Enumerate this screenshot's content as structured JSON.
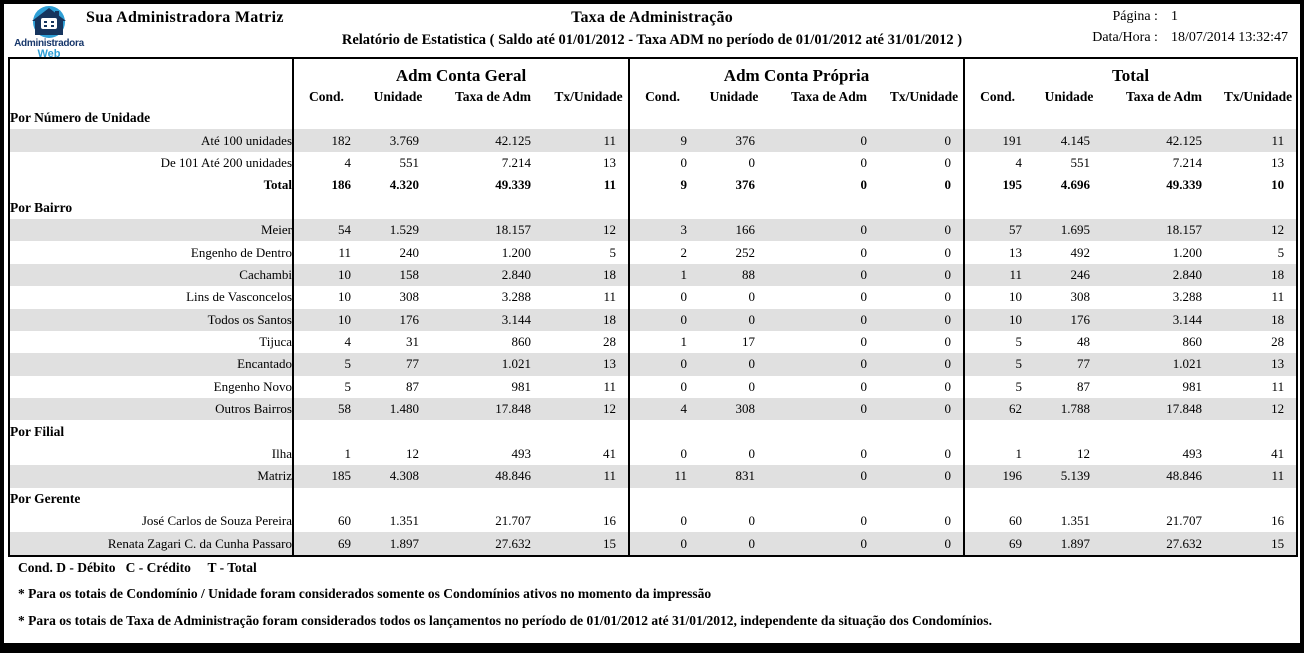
{
  "header": {
    "company": "Sua Administradora Matriz",
    "report_title": "Taxa de Administração",
    "report_subtitle": "Relatório de Estatistica ( Saldo até 01/01/2012 - Taxa ADM no período de 01/01/2012 até 31/01/2012 )",
    "page_label": "Página :",
    "page_value": "1",
    "datetime_label": "Data/Hora :",
    "datetime_value": "18/07/2014 13:32:47",
    "logo_line1": "Administradora",
    "logo_line2": "Web",
    "logo_icon": "house-icon",
    "logo_colors": {
      "circle": "#2e9fd6",
      "house": "#16355e",
      "text_dark": "#17376b",
      "text_light": "#2e9fd6"
    }
  },
  "table": {
    "groups": [
      "Adm Conta Geral",
      "Adm Conta Própria",
      "Total"
    ],
    "columns": [
      "Cond.",
      "Unidade",
      "Taxa de Adm",
      "Tx/Unidade"
    ],
    "shaded_row_color": "#e0e0e0",
    "sections": [
      {
        "title": "Por Número de Unidade",
        "rows": [
          {
            "label": "Até 100 unidades",
            "shaded": true,
            "bold": false,
            "geral": [
              "182",
              "3.769",
              "42.125",
              "11"
            ],
            "propria": [
              "9",
              "376",
              "0",
              "0"
            ],
            "total": [
              "191",
              "4.145",
              "42.125",
              "11"
            ]
          },
          {
            "label": "De 101 Até 200 unidades",
            "shaded": false,
            "bold": false,
            "geral": [
              "4",
              "551",
              "7.214",
              "13"
            ],
            "propria": [
              "0",
              "0",
              "0",
              "0"
            ],
            "total": [
              "4",
              "551",
              "7.214",
              "13"
            ]
          },
          {
            "label": "Total",
            "shaded": false,
            "bold": true,
            "geral": [
              "186",
              "4.320",
              "49.339",
              "11"
            ],
            "propria": [
              "9",
              "376",
              "0",
              "0"
            ],
            "total": [
              "195",
              "4.696",
              "49.339",
              "10"
            ]
          }
        ]
      },
      {
        "title": "Por Bairro",
        "rows": [
          {
            "label": "Meier",
            "shaded": true,
            "bold": false,
            "geral": [
              "54",
              "1.529",
              "18.157",
              "12"
            ],
            "propria": [
              "3",
              "166",
              "0",
              "0"
            ],
            "total": [
              "57",
              "1.695",
              "18.157",
              "12"
            ]
          },
          {
            "label": "Engenho de Dentro",
            "shaded": false,
            "bold": false,
            "geral": [
              "11",
              "240",
              "1.200",
              "5"
            ],
            "propria": [
              "2",
              "252",
              "0",
              "0"
            ],
            "total": [
              "13",
              "492",
              "1.200",
              "5"
            ]
          },
          {
            "label": "Cachambi",
            "shaded": true,
            "bold": false,
            "geral": [
              "10",
              "158",
              "2.840",
              "18"
            ],
            "propria": [
              "1",
              "88",
              "0",
              "0"
            ],
            "total": [
              "11",
              "246",
              "2.840",
              "18"
            ]
          },
          {
            "label": "Lins de Vasconcelos",
            "shaded": false,
            "bold": false,
            "geral": [
              "10",
              "308",
              "3.288",
              "11"
            ],
            "propria": [
              "0",
              "0",
              "0",
              "0"
            ],
            "total": [
              "10",
              "308",
              "3.288",
              "11"
            ]
          },
          {
            "label": "Todos os Santos",
            "shaded": true,
            "bold": false,
            "geral": [
              "10",
              "176",
              "3.144",
              "18"
            ],
            "propria": [
              "0",
              "0",
              "0",
              "0"
            ],
            "total": [
              "10",
              "176",
              "3.144",
              "18"
            ]
          },
          {
            "label": "Tijuca",
            "shaded": false,
            "bold": false,
            "geral": [
              "4",
              "31",
              "860",
              "28"
            ],
            "propria": [
              "1",
              "17",
              "0",
              "0"
            ],
            "total": [
              "5",
              "48",
              "860",
              "28"
            ]
          },
          {
            "label": "Encantado",
            "shaded": true,
            "bold": false,
            "geral": [
              "5",
              "77",
              "1.021",
              "13"
            ],
            "propria": [
              "0",
              "0",
              "0",
              "0"
            ],
            "total": [
              "5",
              "77",
              "1.021",
              "13"
            ]
          },
          {
            "label": "Engenho Novo",
            "shaded": false,
            "bold": false,
            "geral": [
              "5",
              "87",
              "981",
              "11"
            ],
            "propria": [
              "0",
              "0",
              "0",
              "0"
            ],
            "total": [
              "5",
              "87",
              "981",
              "11"
            ]
          },
          {
            "label": "Outros Bairros",
            "shaded": true,
            "bold": false,
            "geral": [
              "58",
              "1.480",
              "17.848",
              "12"
            ],
            "propria": [
              "4",
              "308",
              "0",
              "0"
            ],
            "total": [
              "62",
              "1.788",
              "17.848",
              "12"
            ]
          }
        ]
      },
      {
        "title": "Por Filial",
        "rows": [
          {
            "label": "Ilha",
            "shaded": false,
            "bold": false,
            "geral": [
              "1",
              "12",
              "493",
              "41"
            ],
            "propria": [
              "0",
              "0",
              "0",
              "0"
            ],
            "total": [
              "1",
              "12",
              "493",
              "41"
            ]
          },
          {
            "label": "Matriz",
            "shaded": true,
            "bold": false,
            "geral": [
              "185",
              "4.308",
              "48.846",
              "11"
            ],
            "propria": [
              "11",
              "831",
              "0",
              "0"
            ],
            "total": [
              "196",
              "5.139",
              "48.846",
              "11"
            ]
          }
        ]
      },
      {
        "title": "Por Gerente",
        "rows": [
          {
            "label": "José Carlos de Souza Pereira",
            "shaded": false,
            "bold": false,
            "geral": [
              "60",
              "1.351",
              "21.707",
              "16"
            ],
            "propria": [
              "0",
              "0",
              "0",
              "0"
            ],
            "total": [
              "60",
              "1.351",
              "21.707",
              "16"
            ]
          },
          {
            "label": "Renata Zagari C. da Cunha Passaro",
            "shaded": true,
            "bold": false,
            "geral": [
              "69",
              "1.897",
              "27.632",
              "15"
            ],
            "propria": [
              "0",
              "0",
              "0",
              "0"
            ],
            "total": [
              "69",
              "1.897",
              "27.632",
              "15"
            ]
          }
        ]
      }
    ]
  },
  "footer": {
    "legend": "Cond. D - Débito   C - Crédito     T - Total",
    "notes": [
      "* Para os totais de Condomínio / Unidade foram considerados somente os Condomínios  ativos no momento da impressão",
      "* Para os totais de Taxa de Administração foram considerados todos os lançamentos no período  de 01/01/2012 até 31/01/2012, independente da situação dos Condomínios."
    ]
  }
}
